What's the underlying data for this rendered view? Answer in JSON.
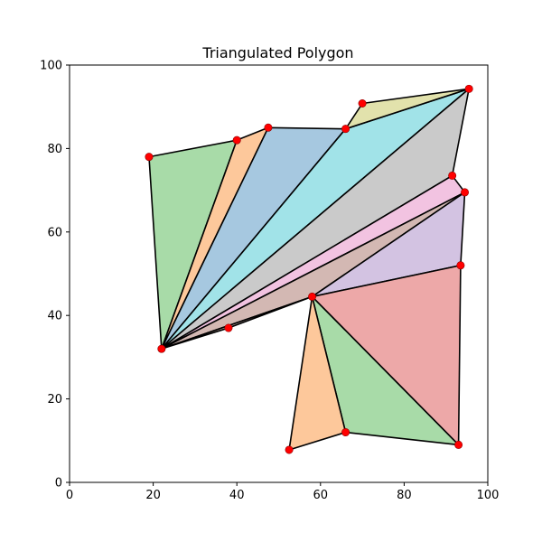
{
  "chart_data": {
    "type": "polygon-triangulation",
    "title": "Triangulated Polygon",
    "xlabel": "",
    "ylabel": "",
    "xlim": [
      0,
      100
    ],
    "ylim": [
      0,
      100
    ],
    "xticks": [
      0,
      20,
      40,
      60,
      80,
      100
    ],
    "yticks": [
      0,
      20,
      40,
      60,
      80,
      100
    ],
    "xtick_labels": [
      "0",
      "20",
      "40",
      "60",
      "80",
      "100"
    ],
    "ytick_labels": [
      "0",
      "20",
      "40",
      "60",
      "80",
      "100"
    ],
    "grid": false,
    "vertex_color": "#ff0000",
    "edge_color": "#000000",
    "vertices": [
      {
        "x": 19,
        "y": 78
      },
      {
        "x": 40,
        "y": 82
      },
      {
        "x": 47.5,
        "y": 85
      },
      {
        "x": 66,
        "y": 84.7
      },
      {
        "x": 70,
        "y": 90.8
      },
      {
        "x": 95.5,
        "y": 94.3
      },
      {
        "x": 91.5,
        "y": 73.5
      },
      {
        "x": 94.5,
        "y": 69.5
      },
      {
        "x": 93.5,
        "y": 52
      },
      {
        "x": 93,
        "y": 9
      },
      {
        "x": 66,
        "y": 12
      },
      {
        "x": 52.5,
        "y": 7.8
      },
      {
        "x": 58,
        "y": 44.5
      },
      {
        "x": 38,
        "y": 37
      },
      {
        "x": 22,
        "y": 32
      }
    ],
    "triangles": [
      {
        "points": [
          [
            22,
            32
          ],
          [
            19,
            78
          ],
          [
            40,
            82
          ]
        ],
        "color": "#a8dba8"
      },
      {
        "points": [
          [
            22,
            32
          ],
          [
            40,
            82
          ],
          [
            47.5,
            85
          ]
        ],
        "color": "#fdc89b"
      },
      {
        "points": [
          [
            22,
            32
          ],
          [
            47.5,
            85
          ],
          [
            66,
            84.7
          ]
        ],
        "color": "#a6c8e0"
      },
      {
        "points": [
          [
            22,
            32
          ],
          [
            66,
            84.7
          ],
          [
            95.5,
            94.3
          ]
        ],
        "color": "#a1e3e8"
      },
      {
        "points": [
          [
            66,
            84.7
          ],
          [
            70,
            90.8
          ],
          [
            95.5,
            94.3
          ]
        ],
        "color": "#e2e2ac"
      },
      {
        "points": [
          [
            22,
            32
          ],
          [
            95.5,
            94.3
          ],
          [
            91.5,
            73.5
          ]
        ],
        "color": "#cacaca"
      },
      {
        "points": [
          [
            22,
            32
          ],
          [
            91.5,
            73.5
          ],
          [
            94.5,
            69.5
          ]
        ],
        "color": "#f2c3e1"
      },
      {
        "points": [
          [
            22,
            32
          ],
          [
            94.5,
            69.5
          ],
          [
            58,
            44.5
          ]
        ],
        "color": "#d3b8b3"
      },
      {
        "points": [
          [
            22,
            32
          ],
          [
            58,
            44.5
          ],
          [
            38,
            37
          ]
        ],
        "color": "#d3b8b3"
      },
      {
        "points": [
          [
            58,
            44.5
          ],
          [
            94.5,
            69.5
          ],
          [
            93.5,
            52
          ]
        ],
        "color": "#d3c3e2"
      },
      {
        "points": [
          [
            58,
            44.5
          ],
          [
            93.5,
            52
          ],
          [
            93,
            9
          ]
        ],
        "color": "#eda8a8"
      },
      {
        "points": [
          [
            58,
            44.5
          ],
          [
            93,
            9
          ],
          [
            66,
            12
          ]
        ],
        "color": "#a8dba8"
      },
      {
        "points": [
          [
            58,
            44.5
          ],
          [
            66,
            12
          ],
          [
            52.5,
            7.8
          ]
        ],
        "color": "#fdc89b"
      }
    ]
  }
}
